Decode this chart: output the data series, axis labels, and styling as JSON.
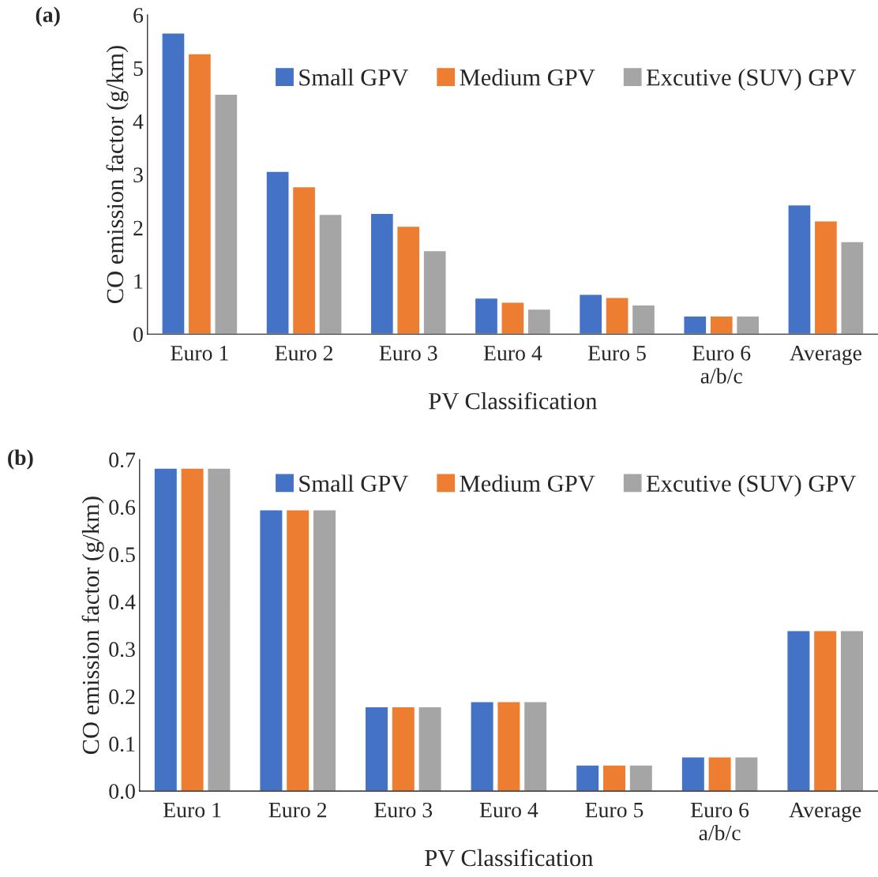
{
  "chart_data": [
    {
      "type": "bar",
      "annotations": [
        "(a)"
      ],
      "xlabel": "PV Classification",
      "ylabel": "CO emission factor (g/km)",
      "categories": [
        "Euro 1",
        "Euro 2",
        "Euro 3",
        "Euro 4",
        "Euro 5",
        "Euro 6\na/b/c",
        "Average"
      ],
      "series": [
        {
          "name": "Small GPV",
          "color": "#4472c4",
          "values": [
            5.66,
            3.06,
            2.27,
            0.68,
            0.75,
            0.34,
            2.43
          ]
        },
        {
          "name": "Medium GPV",
          "color": "#ed7d31",
          "values": [
            5.27,
            2.77,
            2.03,
            0.6,
            0.69,
            0.34,
            2.13
          ]
        },
        {
          "name": "Excutive (SUV) GPV",
          "color": "#a5a5a5",
          "values": [
            4.51,
            2.25,
            1.57,
            0.47,
            0.55,
            0.34,
            1.74
          ]
        }
      ],
      "ylim": [
        0,
        6
      ],
      "yticks": [
        0,
        1,
        2,
        3,
        4,
        5,
        6
      ],
      "grid": false,
      "legend": "top right"
    },
    {
      "type": "bar",
      "annotations": [
        "(b)"
      ],
      "xlabel": "PV Classification",
      "ylabel": "CO emission factor (g/km)",
      "categories": [
        "Euro 1",
        "Euro 2",
        "Euro 3",
        "Euro 4",
        "Euro 5",
        "Euro 6\na/b/c",
        "Average"
      ],
      "series": [
        {
          "name": "Small GPV",
          "color": "#4472c4",
          "values": [
            0.682,
            0.594,
            0.178,
            0.189,
            0.055,
            0.072,
            0.339
          ]
        },
        {
          "name": "Medium GPV",
          "color": "#ed7d31",
          "values": [
            0.682,
            0.594,
            0.178,
            0.189,
            0.055,
            0.072,
            0.339
          ]
        },
        {
          "name": "Excutive (SUV) GPV",
          "color": "#a5a5a5",
          "values": [
            0.682,
            0.594,
            0.178,
            0.189,
            0.055,
            0.072,
            0.339
          ]
        }
      ],
      "ylim": [
        0,
        0.7
      ],
      "yticks": [
        {
          "value": 0,
          "label": "0.0"
        },
        0.1,
        0.2,
        0.3,
        0.4,
        0.5,
        0.6,
        0.7
      ],
      "grid": false,
      "legend": "top right"
    }
  ]
}
